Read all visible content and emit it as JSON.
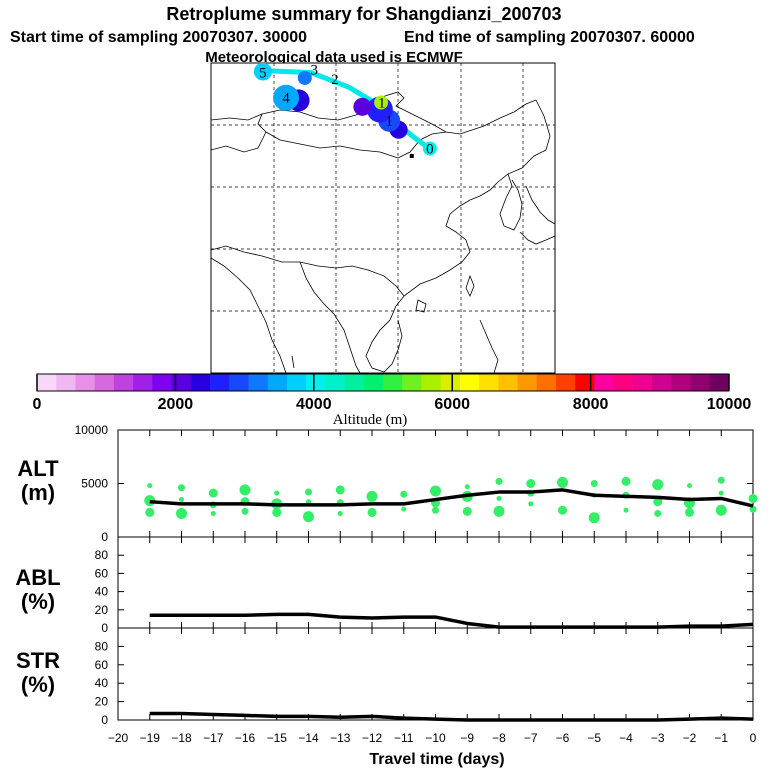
{
  "header": {
    "title": "Retroplume summary for Shangdianzi_200703",
    "start": "Start time of sampling 20070307. 30000",
    "end": "End time of sampling 20070307. 60000",
    "met": "Meteorological data used is ECMWF"
  },
  "colorbar": {
    "colors": [
      "#f8d8f8",
      "#f0b8f0",
      "#e890e8",
      "#d868e0",
      "#c040e0",
      "#a020e8",
      "#8000f0",
      "#5a00e0",
      "#2800e0",
      "#2020ff",
      "#1848ff",
      "#1078ff",
      "#00a8ff",
      "#00d0ff",
      "#00f0f0",
      "#00f0c8",
      "#00f0a0",
      "#00f070",
      "#30f040",
      "#70f020",
      "#a8f000",
      "#d8f000",
      "#ffff00",
      "#ffe000",
      "#ffc000",
      "#ff9800",
      "#ff7000",
      "#ff4000",
      "#ff0000",
      "#ff00a0",
      "#ff0080",
      "#f00090",
      "#d00090",
      "#b00080",
      "#900070",
      "#700060"
    ],
    "tick_values": [
      0,
      2000,
      4000,
      6000,
      8000,
      10000
    ],
    "tick_labels": [
      "0",
      "2000",
      "4000",
      "6000",
      "8000",
      "10000"
    ],
    "label": "Altitude (m)"
  },
  "map": {
    "day_labels": [
      {
        "text": "0",
        "lon": 120.0,
        "lat": 42.0
      },
      {
        "text": "1",
        "lon": 113.5,
        "lat": 47.2
      },
      {
        "text": "1",
        "lon": 112.3,
        "lat": 50.6
      },
      {
        "text": "2",
        "lon": 104.8,
        "lat": 55.0
      },
      {
        "text": "3",
        "lon": 101.5,
        "lat": 56.8
      },
      {
        "text": "4",
        "lon": 97.0,
        "lat": 51.5
      },
      {
        "text": "5",
        "lon": 93.3,
        "lat": 56.2
      }
    ],
    "plume_path": [
      [
        120.5,
        41.5
      ],
      [
        117,
        44.5
      ],
      [
        114,
        47.5
      ],
      [
        112,
        50.0
      ],
      [
        107,
        53.5
      ],
      [
        101,
        56.2
      ],
      [
        93,
        56.6
      ]
    ],
    "plume_color": "#00e8e8",
    "station": {
      "lon": 117.1,
      "lat": 40.6
    },
    "blobs": [
      {
        "lon": 120.0,
        "lat": 42.0,
        "alt": 4000
      },
      {
        "lon": 115.0,
        "lat": 45.5,
        "alt": 2300
      },
      {
        "lon": 113.5,
        "lat": 47.2,
        "alt": 3000
      },
      {
        "lon": 112.0,
        "lat": 49.3,
        "alt": 2600
      },
      {
        "lon": 112.2,
        "lat": 50.6,
        "alt": 5700
      },
      {
        "lon": 109.2,
        "lat": 49.8,
        "alt": 2200
      },
      {
        "lon": 99.0,
        "lat": 51.0,
        "alt": 2300
      },
      {
        "lon": 97.0,
        "lat": 51.5,
        "alt": 3500
      },
      {
        "lon": 100.0,
        "lat": 55.2,
        "alt": 3200
      },
      {
        "lon": 93.3,
        "lat": 56.4,
        "alt": 3800
      }
    ]
  },
  "chart_data": [
    {
      "type": "line",
      "title": "ALT",
      "ylabel": "ALT (m)",
      "xlabel": "Travel time (days)",
      "xlim": [
        -20,
        0
      ],
      "ylim": [
        0,
        10000
      ],
      "yticks": [
        0,
        5000,
        10000
      ],
      "x": [
        -19,
        -18,
        -17,
        -16,
        -15,
        -14,
        -13,
        -12,
        -11,
        -10,
        -9,
        -8,
        -7,
        -6,
        -5,
        -4,
        -3,
        -2,
        -1,
        0
      ],
      "series": [
        {
          "name": "mean altitude",
          "values": [
            3300,
            3100,
            3100,
            3100,
            3000,
            3000,
            3000,
            3100,
            3100,
            3500,
            3900,
            4200,
            4200,
            4400,
            3900,
            3800,
            3700,
            3500,
            3600,
            2900
          ]
        }
      ],
      "scatter": {
        "name": "altitude spread",
        "color": "#33ee66",
        "x": [
          -19,
          -19,
          -19,
          -18,
          -18,
          -18,
          -17,
          -17,
          -17,
          -16,
          -16,
          -16,
          -15,
          -15,
          -15,
          -14,
          -14,
          -14,
          -13,
          -13,
          -13,
          -12,
          -12,
          -11,
          -11,
          -10,
          -10,
          -10,
          -9,
          -9,
          -9,
          -8,
          -8,
          -8,
          -7,
          -7,
          -7,
          -6,
          -6,
          -5,
          -5,
          -5,
          -4,
          -4,
          -4,
          -3,
          -3,
          -3,
          -2,
          -2,
          -2,
          -1,
          -1,
          -1,
          0,
          0
        ],
        "y": [
          4800,
          3400,
          2300,
          4600,
          3500,
          2200,
          4100,
          3000,
          2200,
          4400,
          3300,
          2400,
          4100,
          3100,
          2300,
          4200,
          3300,
          1900,
          4400,
          3200,
          2200,
          3800,
          2300,
          4000,
          2600,
          4300,
          3200,
          2500,
          4700,
          3800,
          2400,
          5200,
          3600,
          2400,
          5000,
          4100,
          3100,
          5100,
          2500,
          5000,
          3900,
          1800,
          5200,
          3900,
          2500,
          4900,
          3300,
          2200,
          4800,
          3200,
          2300,
          5300,
          4100,
          2500,
          3600,
          2600
        ]
      }
    },
    {
      "type": "line",
      "title": "ABL",
      "ylabel": "ABL (%)",
      "xlim": [
        -20,
        0
      ],
      "ylim": [
        0,
        100
      ],
      "yticks": [
        0,
        20,
        40,
        60,
        80
      ],
      "x": [
        -19,
        -18,
        -17,
        -16,
        -15,
        -14,
        -13,
        -12,
        -11,
        -10,
        -9,
        -8,
        -7,
        -6,
        -5,
        -4,
        -3,
        -2,
        -1,
        0
      ],
      "series": [
        {
          "name": "ABL fraction",
          "values": [
            14,
            14,
            14,
            14,
            15,
            15,
            12,
            11,
            12,
            12,
            5,
            1,
            1,
            1,
            1,
            1,
            1,
            2,
            2,
            4
          ]
        }
      ]
    },
    {
      "type": "line",
      "title": "STR",
      "ylabel": "STR (%)",
      "xlim": [
        -20,
        0
      ],
      "ylim": [
        0,
        100
      ],
      "yticks": [
        0,
        20,
        40,
        60,
        80
      ],
      "xticks": [
        -20,
        -19,
        -18,
        -17,
        -16,
        -15,
        -14,
        -13,
        -12,
        -11,
        -10,
        -9,
        -8,
        -7,
        -6,
        -5,
        -4,
        -3,
        -2,
        -1,
        0
      ],
      "xticklabels": [
        "−20",
        "−19",
        "−18",
        "−17",
        "−16",
        "−15",
        "−14",
        "−13",
        "−12",
        "−11",
        "−10",
        "−9",
        "−8",
        "−7",
        "−6",
        "−5",
        "−4",
        "−3",
        "−2",
        "−1",
        "0"
      ],
      "x": [
        -19,
        -18,
        -17,
        -16,
        -15,
        -14,
        -13,
        -12,
        -11,
        -10,
        -9,
        -8,
        -7,
        -6,
        -5,
        -4,
        -3,
        -2,
        -1,
        0
      ],
      "series": [
        {
          "name": "stratospheric fraction",
          "values": [
            7,
            7,
            6,
            5,
            4,
            4,
            3,
            4,
            2,
            1,
            0,
            0,
            0,
            0,
            0,
            0,
            0,
            1,
            2,
            1
          ]
        }
      ]
    }
  ],
  "panels": {
    "alt_label": "ALT",
    "alt_unit": "(m)",
    "abl_label": "ABL",
    "abl_unit": "(%)",
    "str_label": "STR",
    "str_unit": "(%)",
    "xlabel": "Travel time (days)"
  }
}
